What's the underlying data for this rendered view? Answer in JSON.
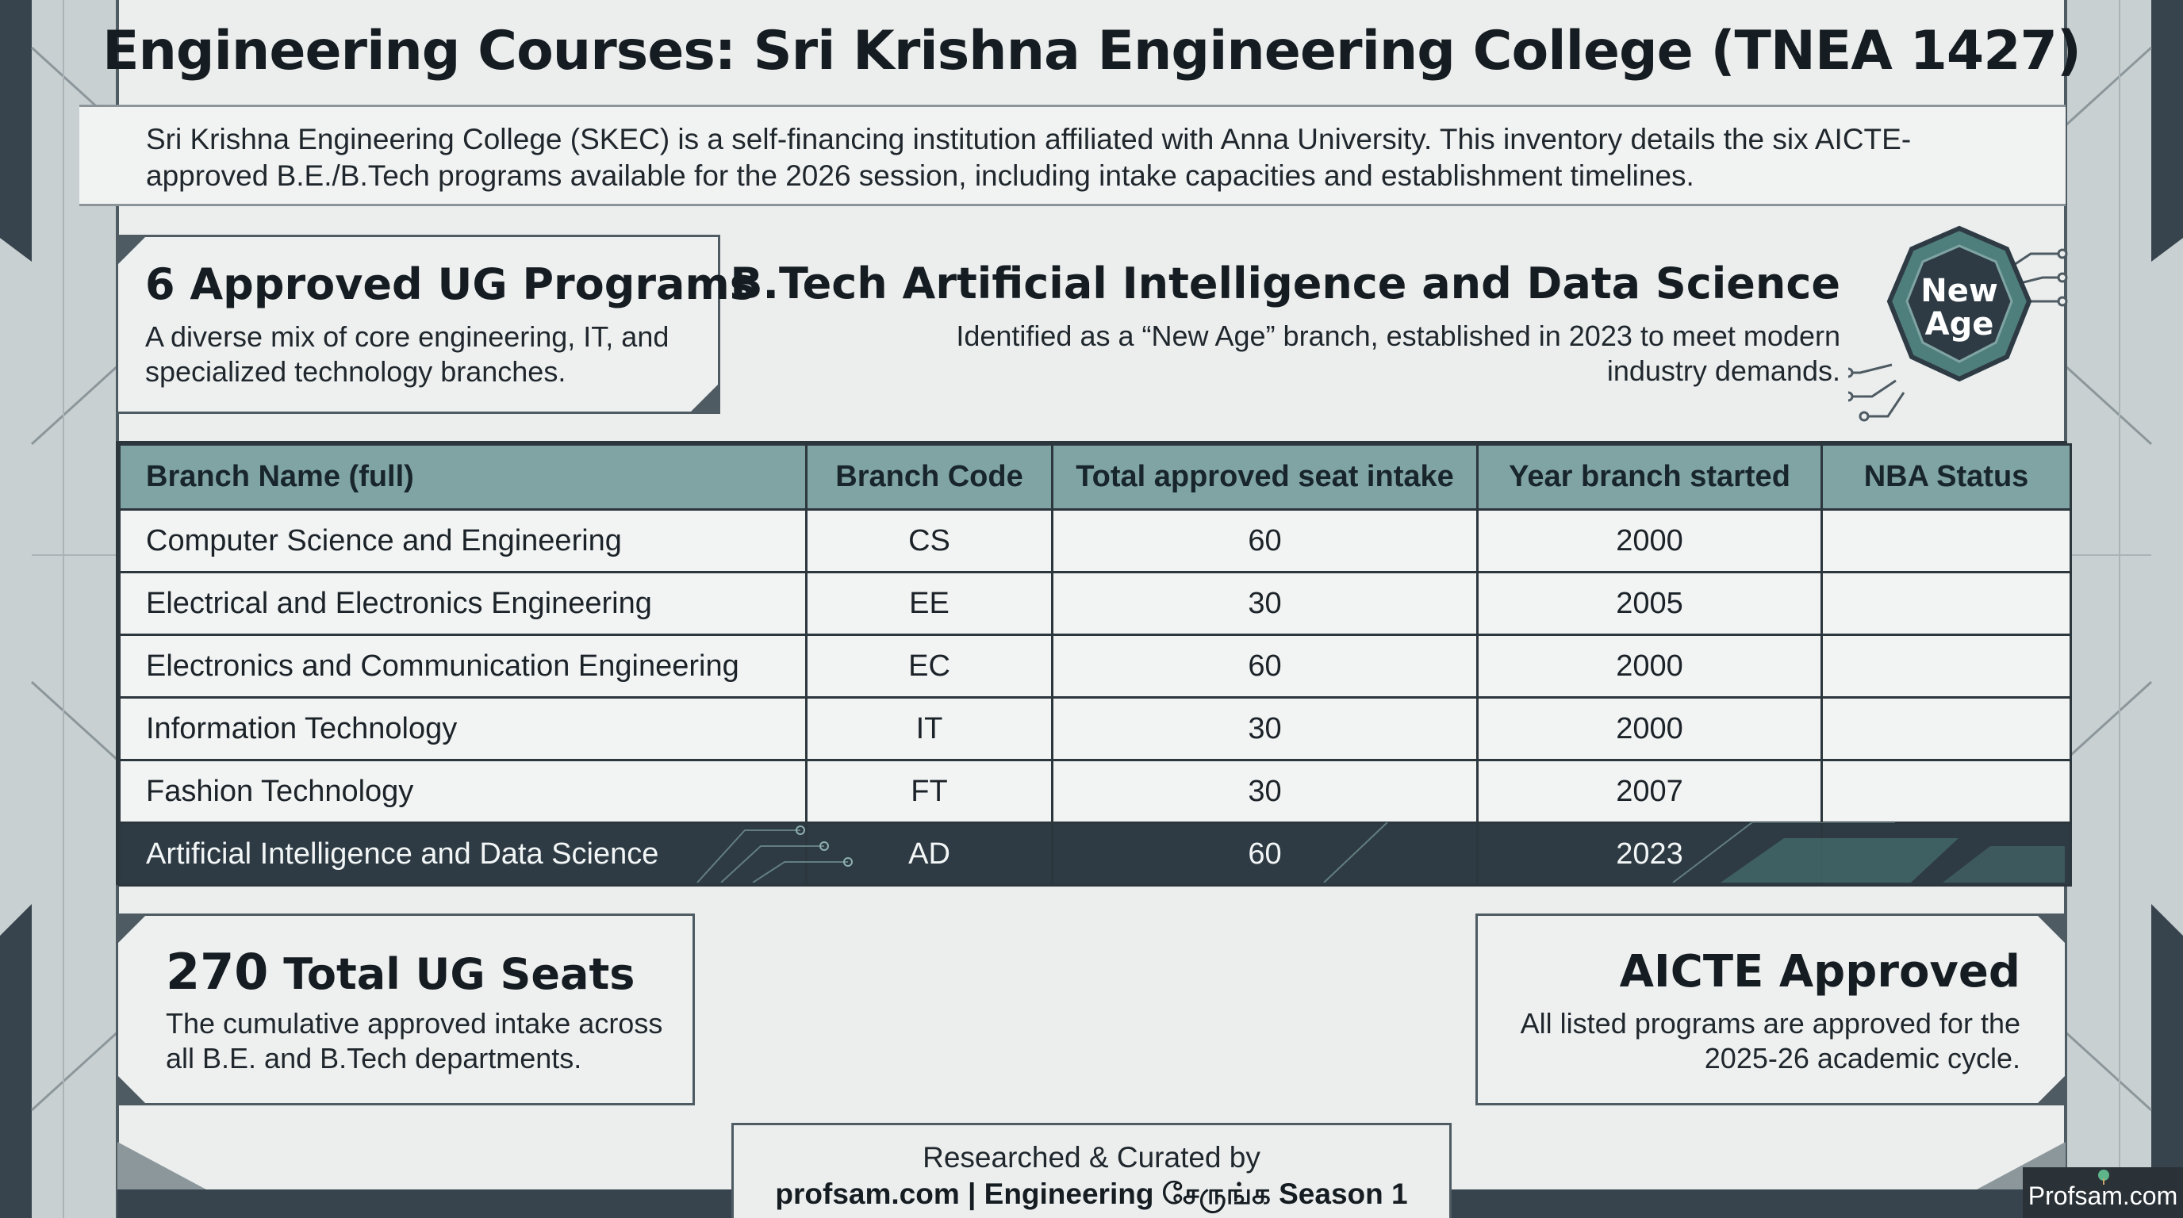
{
  "title": "Engineering Courses: Sri Krishna Engineering College (TNEA 1427)",
  "intro": "Sri Krishna Engineering College (SKEC) is a self-financing institution affiliated with Anna University. This inventory details the six AICTE-approved B.E./B.Tech programs available for the 2026 session, including intake capacities and establishment timelines.",
  "programs_card": {
    "title": "6 Approved UG Programs",
    "text": "A diverse mix of core engineering, IT, and specialized technology branches."
  },
  "ai_highlight": {
    "title": "B.Tech Artificial Intelligence and Data Science",
    "text": "Identified as a “New Age” branch, established in 2023 to meet modern industry demands.",
    "badge_line1": "New",
    "badge_line2": "Age"
  },
  "table": {
    "headers": [
      "Branch Name (full)",
      "Branch Code",
      "Total approved seat intake",
      "Year branch started",
      "NBA Status"
    ],
    "rows": [
      [
        "Computer Science and Engineering",
        "CS",
        "60",
        "2000",
        ""
      ],
      [
        "Electrical and Electronics Engineering",
        "EE",
        "30",
        "2005",
        ""
      ],
      [
        "Electronics and Communication Engineering",
        "EC",
        "60",
        "2000",
        ""
      ],
      [
        "Information Technology",
        "IT",
        "30",
        "2000",
        ""
      ],
      [
        "Fashion Technology",
        "FT",
        "30",
        "2007",
        ""
      ],
      [
        "Artificial Intelligence and Data Science",
        "AD",
        "60",
        "2023",
        ""
      ]
    ],
    "highlight_row": 5
  },
  "seats_card": {
    "number": "270",
    "title": " Total UG Seats",
    "text": "The cumulative approved intake across all B.E. and B.Tech departments."
  },
  "aicte_card": {
    "title": "AICTE Approved",
    "text": "All listed programs are approved for the 2025-26 academic cycle."
  },
  "footer": {
    "line1": "Researched & Curated by",
    "line2": "profsam.com | Engineering சேருங்க Season 1"
  },
  "watermark": "Profsam.com",
  "colors": {
    "header_teal": "#7fa4a3",
    "highlight_row": "#2e3b44",
    "frame_dark": "#37434d",
    "badge_teal": "#4f7f7c"
  }
}
